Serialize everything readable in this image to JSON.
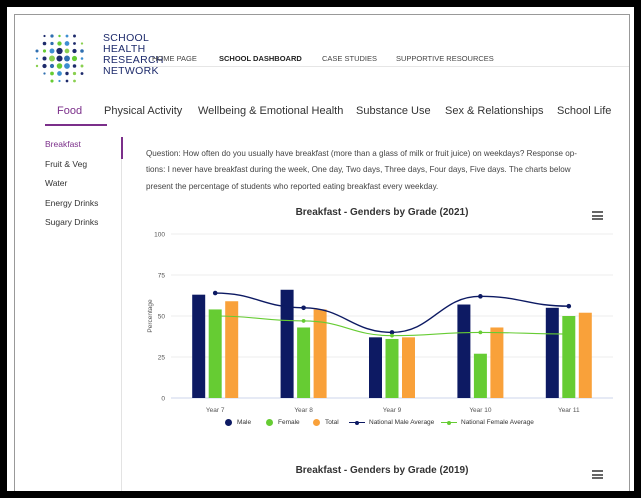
{
  "brand": {
    "name_lines": [
      "SCHOOL",
      "HEALTH",
      "RESEARCH",
      "NETWORK"
    ]
  },
  "topnav": [
    {
      "label": "HOME PAGE",
      "active": false
    },
    {
      "label": "SCHOOL DASHBOARD",
      "active": true
    },
    {
      "label": "CASE STUDIES",
      "active": false
    },
    {
      "label": "SUPPORTIVE RESOURCES",
      "active": false
    }
  ],
  "tabs": [
    {
      "label": "Food",
      "active": true
    },
    {
      "label": "Physical Activity",
      "active": false
    },
    {
      "label": "Wellbeing & Emotional Health",
      "active": false
    },
    {
      "label": "Substance Use",
      "active": false
    },
    {
      "label": "Sex & Relationships",
      "active": false
    },
    {
      "label": "School Life",
      "active": false
    }
  ],
  "sidebar": [
    {
      "label": "Breakfast",
      "active": true
    },
    {
      "label": "Fruit & Veg",
      "active": false
    },
    {
      "label": "Water",
      "active": false
    },
    {
      "label": "Energy Drinks",
      "active": false
    },
    {
      "label": "Sugary Drinks",
      "active": false
    }
  ],
  "question": {
    "line1": "Question: How often do you usually have breakfast (more than a glass of milk or fruit juice) on weekdays? Response op-",
    "line2": "tions: I never have breakfast during the week, One day, Two days, Three days, Four days, Five days. The charts below",
    "line3": "present the percentage of students who reported eating breakfast every weekday."
  },
  "colors": {
    "accent": "#7b2f8a",
    "male": "#0d1a63",
    "female": "#66cc33",
    "total": "#f9a13a",
    "national_male": "#0d1a63",
    "national_female": "#66cc33"
  },
  "chart_data": [
    {
      "type": "bar",
      "title": "Breakfast - Genders by Grade (2021)",
      "xlabel": "",
      "ylabel": "Percentage",
      "ylim": [
        0,
        100
      ],
      "yticks": [
        0,
        25,
        50,
        75,
        100
      ],
      "categories": [
        "Year 7",
        "Year 8",
        "Year 9",
        "Year 10",
        "Year 11"
      ],
      "series": [
        {
          "name": "Male",
          "kind": "bar",
          "values": [
            63,
            66,
            37,
            57,
            55
          ]
        },
        {
          "name": "Female",
          "kind": "bar",
          "values": [
            54,
            43,
            36,
            27,
            50
          ]
        },
        {
          "name": "Total",
          "kind": "bar",
          "values": [
            59,
            54,
            37,
            43,
            52
          ]
        },
        {
          "name": "National Male Average",
          "kind": "line",
          "values": [
            64,
            55,
            40,
            62,
            56
          ]
        },
        {
          "name": "National Female Average",
          "kind": "line",
          "values": [
            50,
            47,
            38,
            40,
            39
          ]
        }
      ],
      "grid": true,
      "legend": "bottom"
    },
    {
      "type": "bar",
      "title": "Breakfast - Genders by Grade (2019)"
    }
  ]
}
